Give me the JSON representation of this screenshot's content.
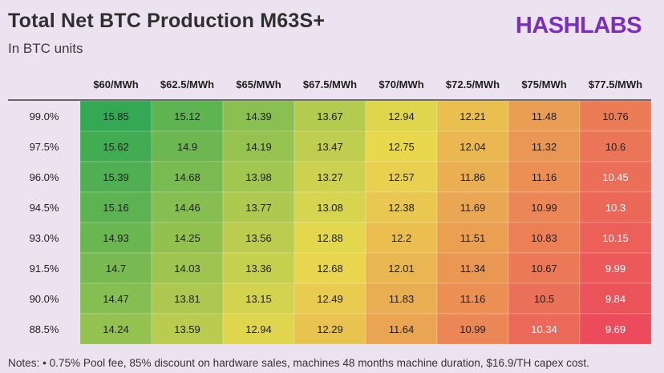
{
  "header": {
    "title": "Total Net BTC Production M63S+",
    "subtitle": "In BTC units",
    "logo_text": "HASHLABS"
  },
  "footer": {
    "notes": "Notes: • 0.75% Pool fee, 85% discount on hardware sales, machines 48 months machine duration, $16.9/TH capex cost."
  },
  "colors": {
    "background": "#ece3f0",
    "logo": "#7b2fbf",
    "high": "#34a853",
    "mid": "#e9d94e",
    "low": "#ec4b5b"
  },
  "chart_data": {
    "type": "heatmap",
    "title": "Total Net BTC Production M63S+",
    "subtitle": "In BTC units",
    "columns": [
      "$60/MWh",
      "$62.5/MWh",
      "$65/MWh",
      "$67.5/MWh",
      "$70/MWh",
      "$72.5/MWh",
      "$75/MWh",
      "$77.5/MWh"
    ],
    "rows": [
      "99.0%",
      "97.5%",
      "96.0%",
      "94.5%",
      "93.0%",
      "91.5%",
      "90.0%",
      "88.5%"
    ],
    "values": [
      [
        "15.85",
        "15.12",
        "14.39",
        "13.67",
        "12.94",
        "12.21",
        "11.48",
        "10.76"
      ],
      [
        "15.62",
        "14.9",
        "14.19",
        "13.47",
        "12.75",
        "12.04",
        "11.32",
        "10.6"
      ],
      [
        "15.39",
        "14.68",
        "13.98",
        "13.27",
        "12.57",
        "11.86",
        "11.16",
        "10.45"
      ],
      [
        "15.16",
        "14.46",
        "13.77",
        "13.08",
        "12.38",
        "11.69",
        "10.99",
        "10.3"
      ],
      [
        "14.93",
        "14.25",
        "13.56",
        "12.88",
        "12.2",
        "11.51",
        "10.83",
        "10.15"
      ],
      [
        "14.7",
        "14.03",
        "13.36",
        "12.68",
        "12.01",
        "11.34",
        "10.67",
        "9.99"
      ],
      [
        "14.47",
        "13.81",
        "13.15",
        "12.49",
        "11.83",
        "11.16",
        "10.5",
        "9.84"
      ],
      [
        "14.24",
        "13.59",
        "12.94",
        "12.29",
        "11.64",
        "10.99",
        "10.34",
        "9.69"
      ]
    ],
    "color_scale": {
      "min": 9.69,
      "mid": 12.77,
      "max": 15.85
    }
  }
}
